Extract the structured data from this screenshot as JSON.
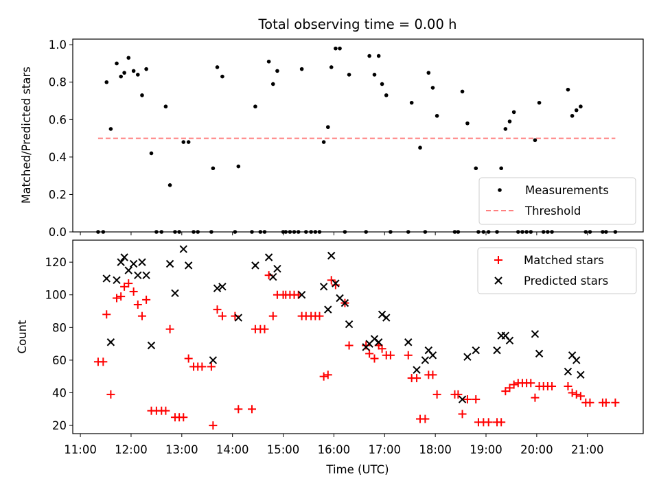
{
  "chart_data": [
    {
      "type": "scatter",
      "title": "Total observing time = 0.00 h",
      "xlabel": "",
      "ylabel": "Matched/Predicted stars",
      "xlim": [
        "10:51",
        "22:06"
      ],
      "ylim": [
        0,
        1.03
      ],
      "yticks": [
        "0.0",
        "0.2",
        "0.4",
        "0.6",
        "0.8",
        "1.0"
      ],
      "legend_position": "lower-right",
      "series": [
        {
          "name": "Measurements",
          "color": "#000000",
          "marker": "dot",
          "points": [
            [
              "11:21",
              0
            ],
            [
              "11:27",
              0
            ],
            [
              "11:31",
              0.8
            ],
            [
              "11:36",
              0.55
            ],
            [
              "11:43",
              0.9
            ],
            [
              "11:48",
              0.83
            ],
            [
              "11:52",
              0.85
            ],
            [
              "11:57",
              0.93
            ],
            [
              "12:03",
              0.86
            ],
            [
              "12:08",
              0.84
            ],
            [
              "12:13",
              0.73
            ],
            [
              "12:18",
              0.87
            ],
            [
              "12:24",
              0.42
            ],
            [
              "12:30",
              0
            ],
            [
              "12:36",
              0
            ],
            [
              "12:41",
              0.67
            ],
            [
              "12:46",
              0.25
            ],
            [
              "12:52",
              0
            ],
            [
              "12:57",
              0
            ],
            [
              "13:02",
              0.48
            ],
            [
              "13:08",
              0.48
            ],
            [
              "13:14",
              0
            ],
            [
              "13:19",
              0
            ],
            [
              "13:35",
              0
            ],
            [
              "13:37",
              0.34
            ],
            [
              "13:42",
              0.88
            ],
            [
              "13:48",
              0.83
            ],
            [
              "14:03",
              0
            ],
            [
              "14:07",
              0.35
            ],
            [
              "14:23",
              0
            ],
            [
              "14:27",
              0.67
            ],
            [
              "14:33",
              0
            ],
            [
              "14:38",
              0
            ],
            [
              "14:43",
              0.91
            ],
            [
              "14:48",
              0.79
            ],
            [
              "14:53",
              0.86
            ],
            [
              "15:00",
              0
            ],
            [
              "15:03",
              0
            ],
            [
              "15:08",
              0
            ],
            [
              "15:13",
              0
            ],
            [
              "15:18",
              0
            ],
            [
              "15:22",
              0.87
            ],
            [
              "15:27",
              0
            ],
            [
              "15:33",
              0
            ],
            [
              "15:38",
              0
            ],
            [
              "15:43",
              0
            ],
            [
              "15:48",
              0.48
            ],
            [
              "15:53",
              0.56
            ],
            [
              "15:57",
              0.88
            ],
            [
              "16:02",
              0.98
            ],
            [
              "16:07",
              0.98
            ],
            [
              "16:13",
              0
            ],
            [
              "16:18",
              0.84
            ],
            [
              "16:38",
              0
            ],
            [
              "16:42",
              0.94
            ],
            [
              "16:48",
              0.84
            ],
            [
              "16:53",
              0.94
            ],
            [
              "16:57",
              0.79
            ],
            [
              "17:02",
              0.73
            ],
            [
              "17:07",
              0
            ],
            [
              "17:28",
              0
            ],
            [
              "17:32",
              0.69
            ],
            [
              "17:42",
              0.45
            ],
            [
              "17:48",
              0
            ],
            [
              "17:52",
              0.85
            ],
            [
              "17:57",
              0.77
            ],
            [
              "18:02",
              0.62
            ],
            [
              "18:23",
              0
            ],
            [
              "18:27",
              0
            ],
            [
              "18:32",
              0.75
            ],
            [
              "18:38",
              0.58
            ],
            [
              "18:48",
              0.34
            ],
            [
              "18:51",
              0
            ],
            [
              "18:57",
              0
            ],
            [
              "19:03",
              0
            ],
            [
              "19:13",
              0
            ],
            [
              "19:18",
              0.34
            ],
            [
              "19:23",
              0.55
            ],
            [
              "19:28",
              0.59
            ],
            [
              "19:33",
              0.64
            ],
            [
              "19:38",
              0
            ],
            [
              "19:43",
              0
            ],
            [
              "19:48",
              0
            ],
            [
              "19:53",
              0
            ],
            [
              "19:58",
              0.49
            ],
            [
              "20:03",
              0.69
            ],
            [
              "20:08",
              0
            ],
            [
              "20:13",
              0
            ],
            [
              "20:18",
              0
            ],
            [
              "20:37",
              0.76
            ],
            [
              "20:42",
              0.62
            ],
            [
              "20:47",
              0.65
            ],
            [
              "20:52",
              0.67
            ],
            [
              "20:58",
              0
            ],
            [
              "21:03",
              0
            ],
            [
              "21:18",
              0
            ],
            [
              "21:22",
              0
            ],
            [
              "21:33",
              0
            ]
          ]
        },
        {
          "name": "Threshold",
          "color": "#ff8080",
          "marker": "dashed-line",
          "points": [
            [
              "11:21",
              0.5
            ],
            [
              "21:33",
              0.5
            ]
          ]
        }
      ]
    },
    {
      "type": "scatter",
      "title": "",
      "xlabel": "Time (UTC)",
      "ylabel": "Count",
      "xlim": [
        "10:51",
        "22:06"
      ],
      "ylim": [
        15,
        133.5
      ],
      "xticks": [
        "11:00",
        "12:00",
        "13:00",
        "14:00",
        "15:00",
        "16:00",
        "17:00",
        "18:00",
        "19:00",
        "20:00",
        "21:00"
      ],
      "yticks": [
        "20",
        "40",
        "60",
        "80",
        "100",
        "120"
      ],
      "legend_position": "upper-right",
      "series": [
        {
          "name": "Matched stars",
          "color": "#ff0000",
          "marker": "plus",
          "points": [
            [
              "11:21",
              59
            ],
            [
              "11:27",
              59
            ],
            [
              "11:31",
              88
            ],
            [
              "11:36",
              39
            ],
            [
              "11:43",
              98
            ],
            [
              "11:48",
              99
            ],
            [
              "11:52",
              105
            ],
            [
              "11:57",
              107
            ],
            [
              "12:03",
              102
            ],
            [
              "12:08",
              94
            ],
            [
              "12:13",
              87
            ],
            [
              "12:18",
              97
            ],
            [
              "12:24",
              29
            ],
            [
              "12:30",
              29
            ],
            [
              "12:36",
              29
            ],
            [
              "12:41",
              29
            ],
            [
              "12:46",
              79
            ],
            [
              "12:52",
              25
            ],
            [
              "12:57",
              25
            ],
            [
              "13:02",
              25
            ],
            [
              "13:08",
              61
            ],
            [
              "13:14",
              56
            ],
            [
              "13:19",
              56
            ],
            [
              "13:24",
              56
            ],
            [
              "13:35",
              56
            ],
            [
              "13:37",
              20
            ],
            [
              "13:42",
              91
            ],
            [
              "13:48",
              87
            ],
            [
              "14:03",
              87
            ],
            [
              "14:07",
              30
            ],
            [
              "14:23",
              30
            ],
            [
              "14:27",
              79
            ],
            [
              "14:33",
              79
            ],
            [
              "14:38",
              79
            ],
            [
              "14:43",
              112
            ],
            [
              "14:48",
              87
            ],
            [
              "14:53",
              100
            ],
            [
              "15:00",
              100
            ],
            [
              "15:03",
              100
            ],
            [
              "15:08",
              100
            ],
            [
              "15:13",
              100
            ],
            [
              "15:18",
              100
            ],
            [
              "15:22",
              87
            ],
            [
              "15:27",
              87
            ],
            [
              "15:33",
              87
            ],
            [
              "15:38",
              87
            ],
            [
              "15:43",
              87
            ],
            [
              "15:48",
              50
            ],
            [
              "15:53",
              51
            ],
            [
              "15:57",
              109
            ],
            [
              "16:02",
              106
            ],
            [
              "16:13",
              95
            ],
            [
              "16:18",
              69
            ],
            [
              "16:38",
              69
            ],
            [
              "16:42",
              64
            ],
            [
              "16:48",
              61
            ],
            [
              "16:53",
              69
            ],
            [
              "16:57",
              67
            ],
            [
              "17:02",
              63
            ],
            [
              "17:07",
              63
            ],
            [
              "17:28",
              63
            ],
            [
              "17:32",
              49
            ],
            [
              "17:38",
              49
            ],
            [
              "17:42",
              24
            ],
            [
              "17:48",
              24
            ],
            [
              "17:52",
              51
            ],
            [
              "17:57",
              51
            ],
            [
              "18:02",
              39
            ],
            [
              "18:23",
              39
            ],
            [
              "18:27",
              39
            ],
            [
              "18:32",
              27
            ],
            [
              "18:38",
              36
            ],
            [
              "18:48",
              36
            ],
            [
              "18:51",
              22
            ],
            [
              "18:57",
              22
            ],
            [
              "19:03",
              22
            ],
            [
              "19:13",
              22
            ],
            [
              "19:18",
              22
            ],
            [
              "19:23",
              41
            ],
            [
              "19:28",
              43
            ],
            [
              "19:33",
              45
            ],
            [
              "19:38",
              46
            ],
            [
              "19:43",
              46
            ],
            [
              "19:48",
              46
            ],
            [
              "19:53",
              46
            ],
            [
              "19:58",
              37
            ],
            [
              "20:03",
              44
            ],
            [
              "20:08",
              44
            ],
            [
              "20:13",
              44
            ],
            [
              "20:18",
              44
            ],
            [
              "20:37",
              44
            ],
            [
              "20:42",
              40
            ],
            [
              "20:47",
              39
            ],
            [
              "20:52",
              38
            ],
            [
              "20:58",
              34
            ],
            [
              "21:03",
              34
            ],
            [
              "21:18",
              34
            ],
            [
              "21:22",
              34
            ],
            [
              "21:33",
              34
            ]
          ]
        },
        {
          "name": "Predicted stars",
          "color": "#000000",
          "marker": "cross",
          "points": [
            [
              "11:31",
              110
            ],
            [
              "11:36",
              71
            ],
            [
              "11:43",
              109
            ],
            [
              "11:48",
              120
            ],
            [
              "11:52",
              123
            ],
            [
              "11:57",
              115
            ],
            [
              "12:03",
              119
            ],
            [
              "12:08",
              112
            ],
            [
              "12:13",
              120
            ],
            [
              "12:18",
              112
            ],
            [
              "12:24",
              69
            ],
            [
              "12:46",
              119
            ],
            [
              "12:52",
              101
            ],
            [
              "13:02",
              128
            ],
            [
              "13:08",
              118
            ],
            [
              "13:37",
              60
            ],
            [
              "13:42",
              104
            ],
            [
              "13:48",
              105
            ],
            [
              "14:07",
              86
            ],
            [
              "14:27",
              118
            ],
            [
              "14:43",
              123
            ],
            [
              "14:48",
              111
            ],
            [
              "14:53",
              116
            ],
            [
              "15:22",
              100
            ],
            [
              "15:48",
              105
            ],
            [
              "15:53",
              91
            ],
            [
              "15:57",
              124
            ],
            [
              "16:02",
              107
            ],
            [
              "16:07",
              98
            ],
            [
              "16:13",
              95
            ],
            [
              "16:18",
              82
            ],
            [
              "16:38",
              68
            ],
            [
              "16:42",
              70
            ],
            [
              "16:48",
              73
            ],
            [
              "16:53",
              71
            ],
            [
              "16:57",
              88
            ],
            [
              "17:02",
              86
            ],
            [
              "17:28",
              71
            ],
            [
              "17:38",
              54
            ],
            [
              "17:48",
              60
            ],
            [
              "17:52",
              66
            ],
            [
              "17:57",
              63
            ],
            [
              "18:32",
              36
            ],
            [
              "18:38",
              62
            ],
            [
              "18:48",
              66
            ],
            [
              "19:13",
              66
            ],
            [
              "19:18",
              75
            ],
            [
              "19:23",
              75
            ],
            [
              "19:28",
              72
            ],
            [
              "19:58",
              76
            ],
            [
              "20:03",
              64
            ],
            [
              "20:37",
              53
            ],
            [
              "20:42",
              63
            ],
            [
              "20:47",
              60
            ],
            [
              "20:52",
              51
            ]
          ]
        }
      ]
    }
  ]
}
